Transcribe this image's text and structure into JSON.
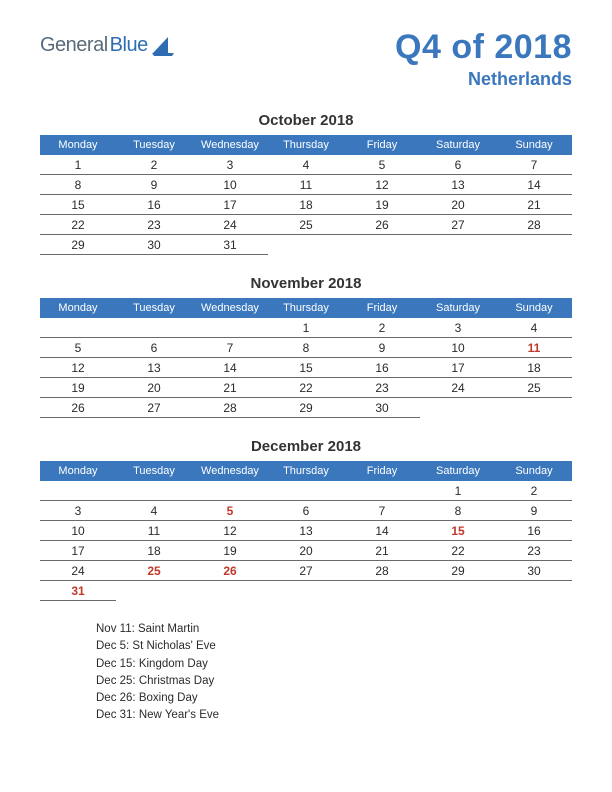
{
  "brand": {
    "general": "General",
    "blue": "Blue"
  },
  "title": "Q4 of 2018",
  "subtitle": "Netherlands",
  "colors": {
    "header_bg": "#3a77bd",
    "header_text": "#ffffff",
    "title_color": "#3a77bd",
    "row_border": "#6a6a6a",
    "holiday_color": "#c0392b",
    "body_text": "#2b2b2b",
    "background": "#ffffff"
  },
  "dayHeaders": [
    "Monday",
    "Tuesday",
    "Wednesday",
    "Thursday",
    "Friday",
    "Saturday",
    "Sunday"
  ],
  "months": [
    {
      "title": "October 2018",
      "weeks": [
        [
          {
            "d": "1"
          },
          {
            "d": "2"
          },
          {
            "d": "3"
          },
          {
            "d": "4"
          },
          {
            "d": "5"
          },
          {
            "d": "6"
          },
          {
            "d": "7"
          }
        ],
        [
          {
            "d": "8"
          },
          {
            "d": "9"
          },
          {
            "d": "10"
          },
          {
            "d": "11"
          },
          {
            "d": "12"
          },
          {
            "d": "13"
          },
          {
            "d": "14"
          }
        ],
        [
          {
            "d": "15"
          },
          {
            "d": "16"
          },
          {
            "d": "17"
          },
          {
            "d": "18"
          },
          {
            "d": "19"
          },
          {
            "d": "20"
          },
          {
            "d": "21"
          }
        ],
        [
          {
            "d": "22"
          },
          {
            "d": "23"
          },
          {
            "d": "24"
          },
          {
            "d": "25"
          },
          {
            "d": "26"
          },
          {
            "d": "27"
          },
          {
            "d": "28"
          }
        ],
        [
          {
            "d": "29"
          },
          {
            "d": "30"
          },
          {
            "d": "31"
          },
          {
            "d": "",
            "t": true
          },
          {
            "d": "",
            "t": true
          },
          {
            "d": "",
            "t": true
          },
          {
            "d": "",
            "t": true
          }
        ]
      ]
    },
    {
      "title": "November 2018",
      "weeks": [
        [
          {
            "d": ""
          },
          {
            "d": ""
          },
          {
            "d": ""
          },
          {
            "d": "1"
          },
          {
            "d": "2"
          },
          {
            "d": "3"
          },
          {
            "d": "4"
          }
        ],
        [
          {
            "d": "5"
          },
          {
            "d": "6"
          },
          {
            "d": "7"
          },
          {
            "d": "8"
          },
          {
            "d": "9"
          },
          {
            "d": "10"
          },
          {
            "d": "11",
            "h": true
          }
        ],
        [
          {
            "d": "12"
          },
          {
            "d": "13"
          },
          {
            "d": "14"
          },
          {
            "d": "15"
          },
          {
            "d": "16"
          },
          {
            "d": "17"
          },
          {
            "d": "18"
          }
        ],
        [
          {
            "d": "19"
          },
          {
            "d": "20"
          },
          {
            "d": "21"
          },
          {
            "d": "22"
          },
          {
            "d": "23"
          },
          {
            "d": "24"
          },
          {
            "d": "25"
          }
        ],
        [
          {
            "d": "26"
          },
          {
            "d": "27"
          },
          {
            "d": "28"
          },
          {
            "d": "29"
          },
          {
            "d": "30"
          },
          {
            "d": "",
            "t": true
          },
          {
            "d": "",
            "t": true
          }
        ]
      ]
    },
    {
      "title": "December 2018",
      "weeks": [
        [
          {
            "d": ""
          },
          {
            "d": ""
          },
          {
            "d": ""
          },
          {
            "d": ""
          },
          {
            "d": ""
          },
          {
            "d": "1"
          },
          {
            "d": "2"
          }
        ],
        [
          {
            "d": "3"
          },
          {
            "d": "4"
          },
          {
            "d": "5",
            "h": true
          },
          {
            "d": "6"
          },
          {
            "d": "7"
          },
          {
            "d": "8"
          },
          {
            "d": "9"
          }
        ],
        [
          {
            "d": "10"
          },
          {
            "d": "11"
          },
          {
            "d": "12"
          },
          {
            "d": "13"
          },
          {
            "d": "14"
          },
          {
            "d": "15",
            "h": true
          },
          {
            "d": "16"
          }
        ],
        [
          {
            "d": "17"
          },
          {
            "d": "18"
          },
          {
            "d": "19"
          },
          {
            "d": "20"
          },
          {
            "d": "21"
          },
          {
            "d": "22"
          },
          {
            "d": "23"
          }
        ],
        [
          {
            "d": "24"
          },
          {
            "d": "25",
            "h": true
          },
          {
            "d": "26",
            "h": true
          },
          {
            "d": "27"
          },
          {
            "d": "28"
          },
          {
            "d": "29"
          },
          {
            "d": "30"
          }
        ],
        [
          {
            "d": "31",
            "h": true
          },
          {
            "d": "",
            "t": true
          },
          {
            "d": "",
            "t": true
          },
          {
            "d": "",
            "t": true
          },
          {
            "d": "",
            "t": true
          },
          {
            "d": "",
            "t": true
          },
          {
            "d": "",
            "t": true
          }
        ]
      ]
    }
  ],
  "legend": [
    "Nov 11: Saint Martin",
    "Dec 5: St Nicholas' Eve",
    "Dec 15: Kingdom Day",
    "Dec 25: Christmas Day",
    "Dec 26: Boxing Day",
    "Dec 31: New Year's Eve"
  ]
}
